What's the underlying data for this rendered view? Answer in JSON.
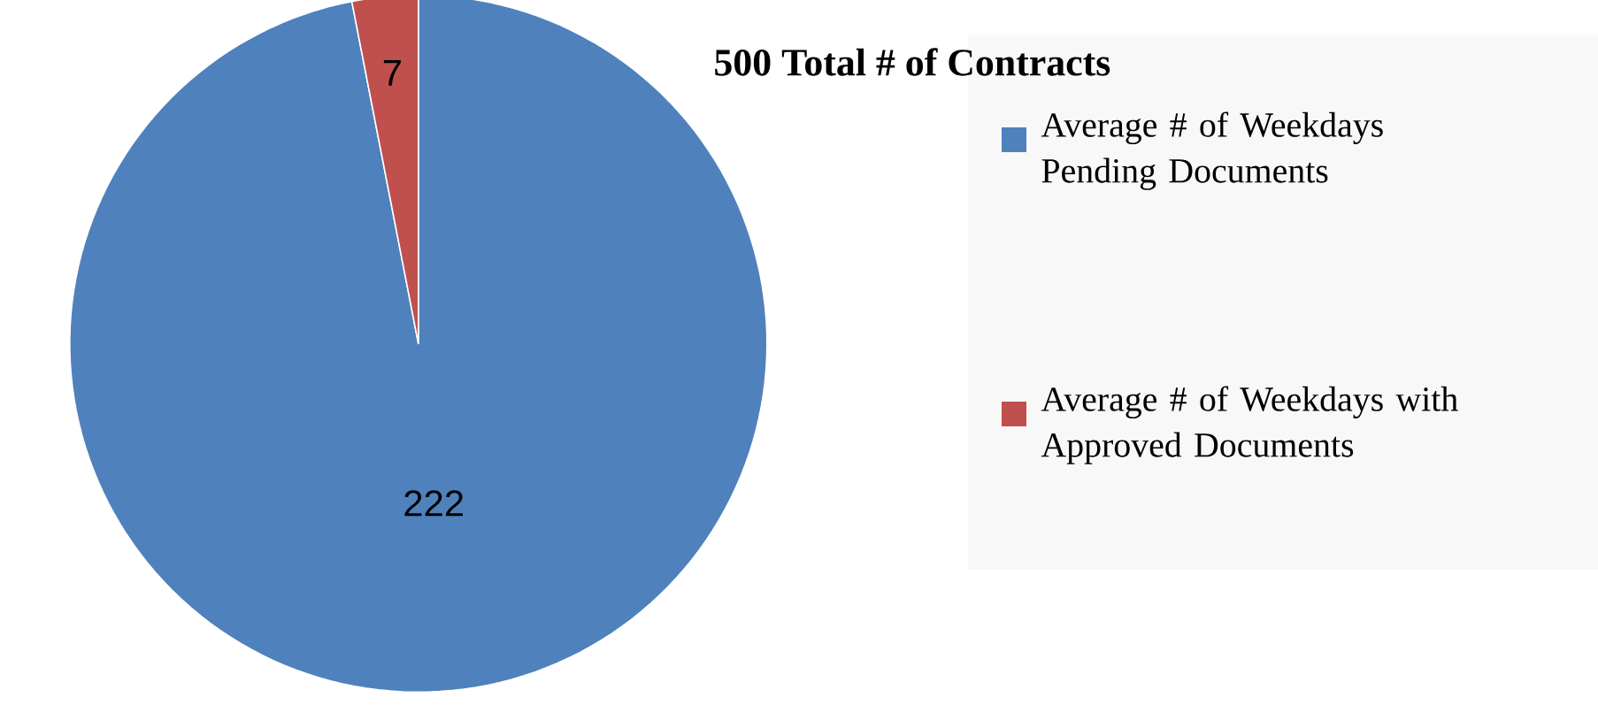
{
  "chart_data": {
    "type": "pie",
    "title": "500 Total # of Contracts",
    "categories": [
      "Average # of Weekdays Pending Documents",
      "Average # of Weekdays with Approved Documents"
    ],
    "values": [
      222,
      7
    ],
    "colors": [
      "#4f81bd",
      "#c0504d"
    ],
    "data_labels": true,
    "legend": "right"
  }
}
